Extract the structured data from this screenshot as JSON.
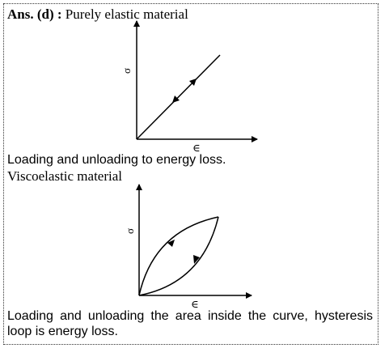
{
  "answer": {
    "prefix": "Ans. (d) :",
    "title": "Purely elastic material"
  },
  "elastic": {
    "y_axis_label": "σ",
    "x_axis_label": "∈",
    "caption": "Loading and unloading to energy loss."
  },
  "viscoelastic": {
    "title": "Viscoelastic material",
    "y_axis_label": "σ",
    "x_axis_label": "∈",
    "caption": "Loading and unloading the area inside the curve, hysteresis loop is energy loss."
  }
}
